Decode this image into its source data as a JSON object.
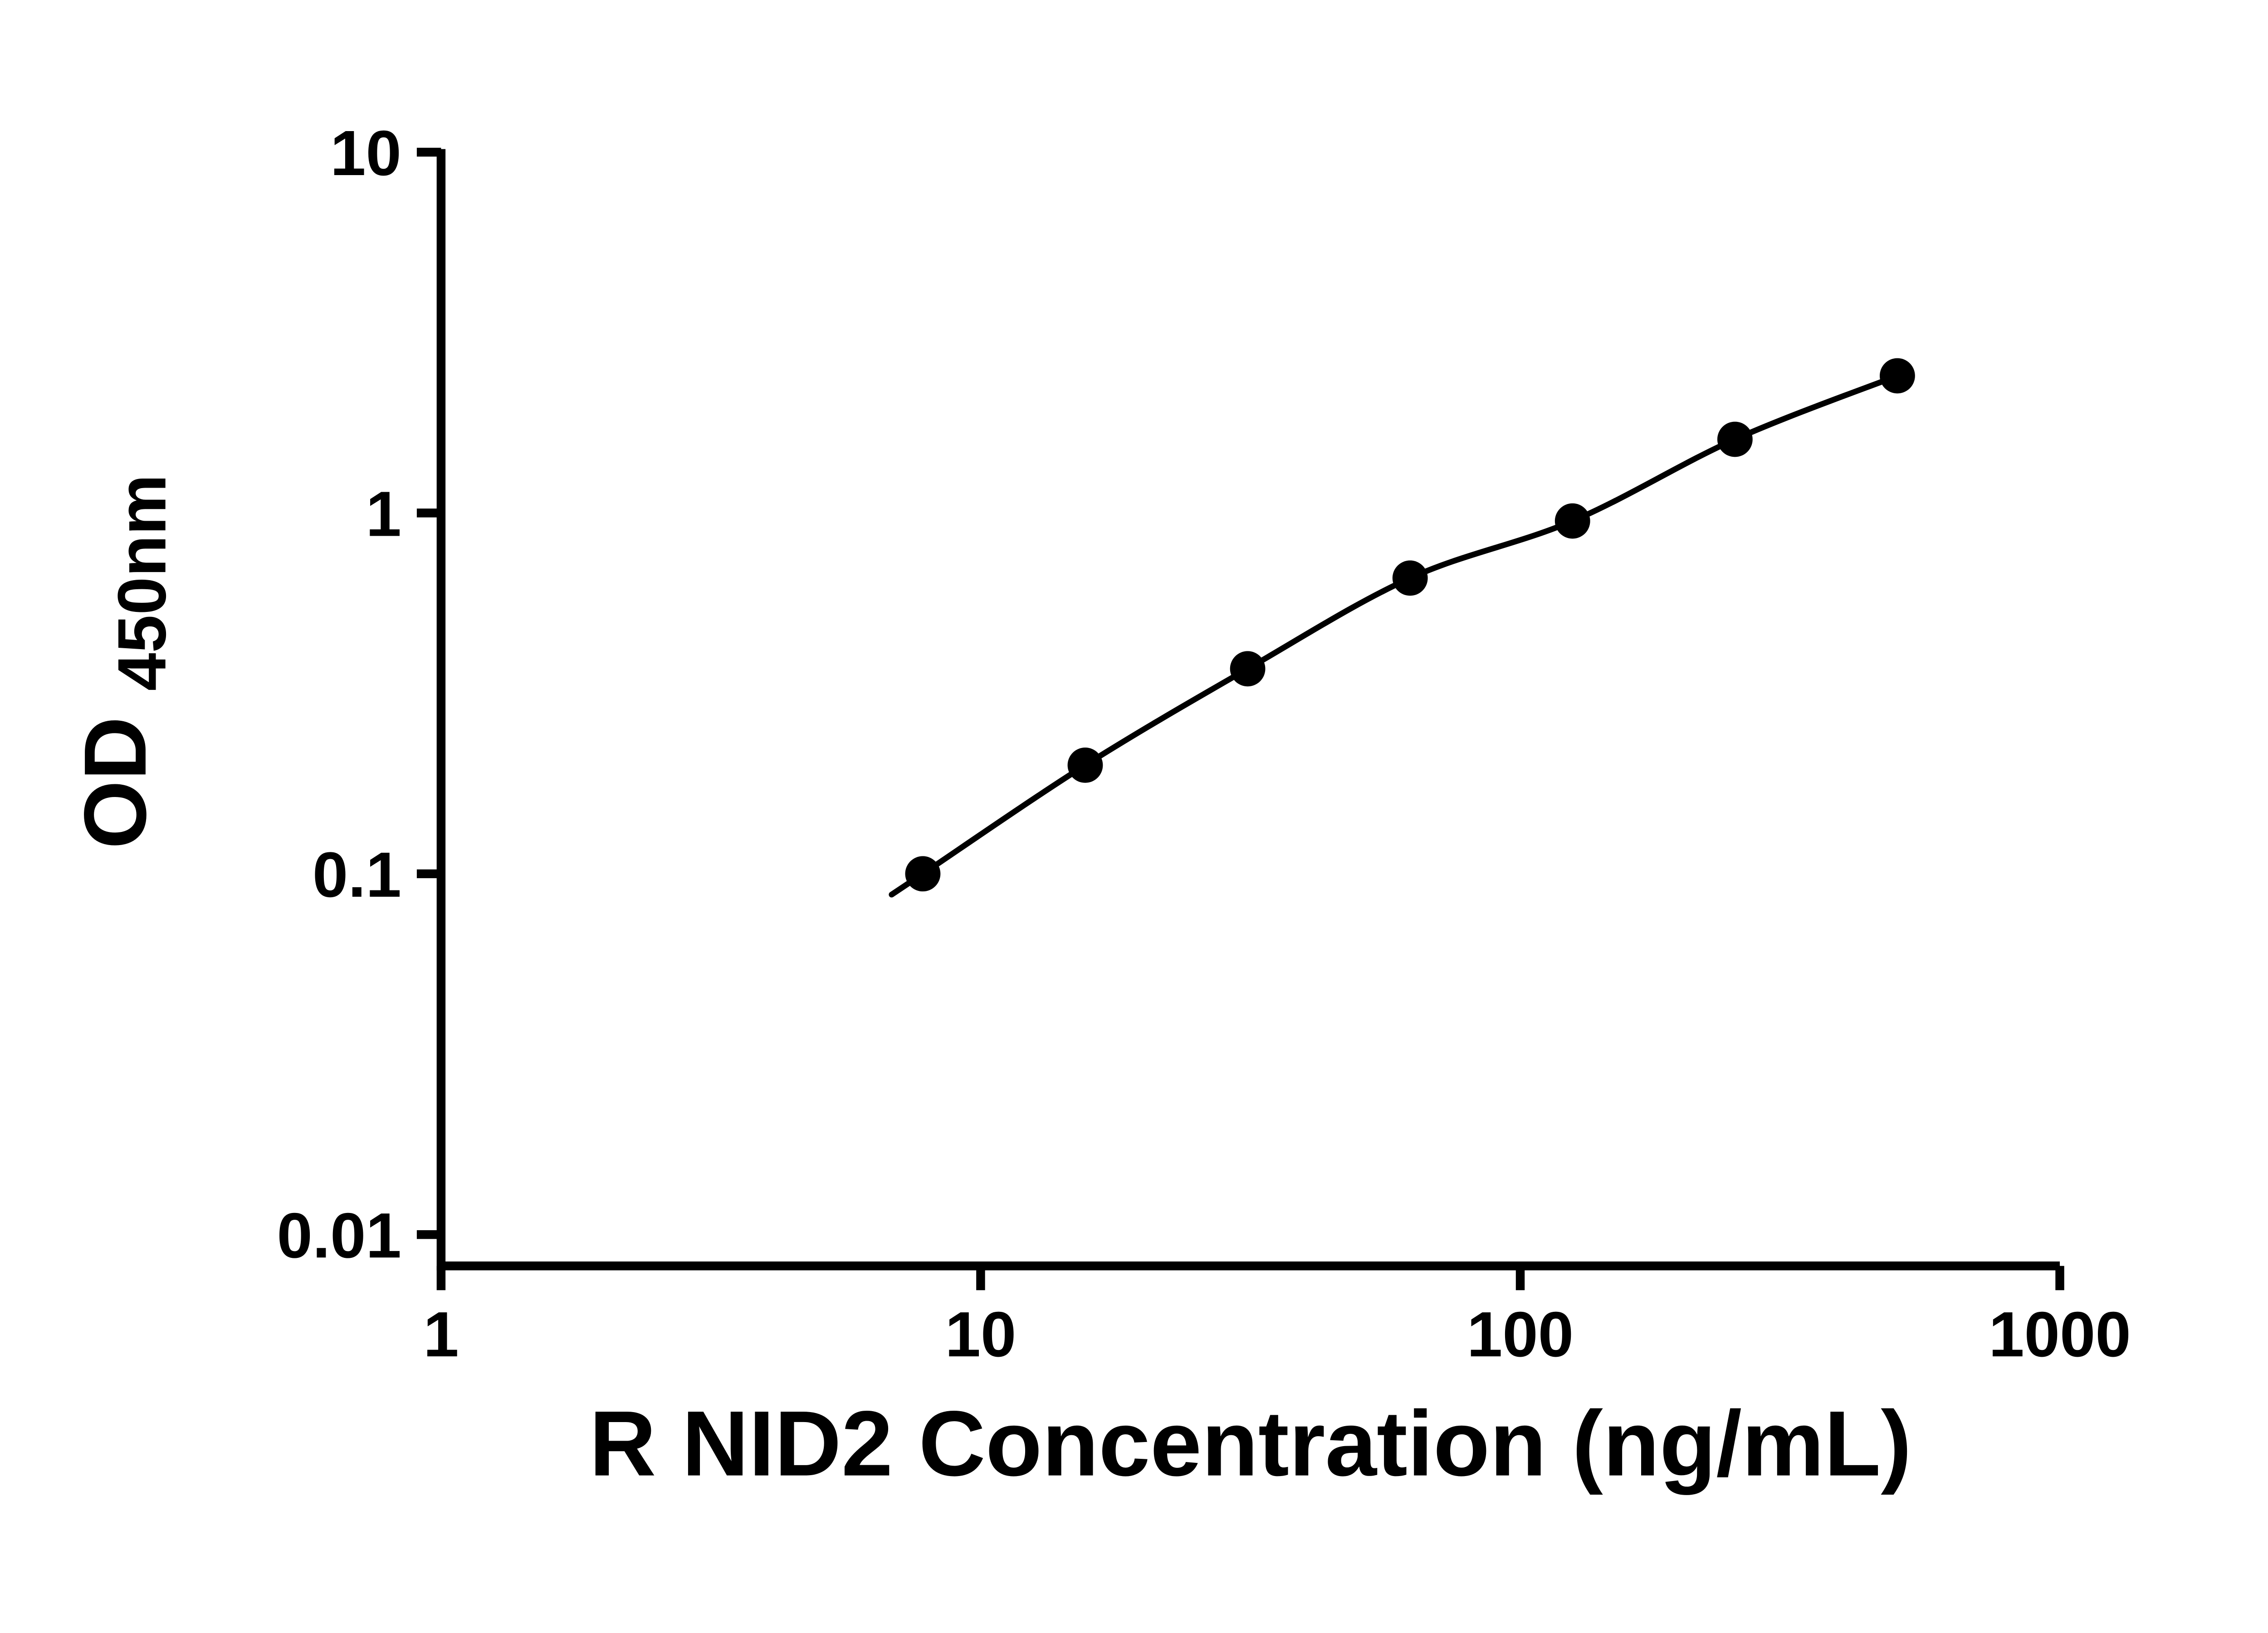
{
  "chart_data": {
    "type": "scatter",
    "title": "",
    "xlabel": "R NID2 Concentration (ng/mL)",
    "ylabel_main": "OD",
    "ylabel_sub": "450nm",
    "x_scale": "log",
    "y_scale": "log",
    "xlim": [
      1,
      1000
    ],
    "ylim": [
      0.01,
      10
    ],
    "grid": false,
    "legend": null,
    "x_ticks": [
      {
        "value": 1,
        "label": "1"
      },
      {
        "value": 10,
        "label": "10"
      },
      {
        "value": 100,
        "label": "100"
      },
      {
        "value": 1000,
        "label": "1000"
      }
    ],
    "y_ticks": [
      {
        "value": 10,
        "label": "10"
      },
      {
        "value": 1,
        "label": "1"
      },
      {
        "value": 0.1,
        "label": "0.1"
      },
      {
        "value": 0.01,
        "label": "0.01"
      }
    ],
    "points": [
      {
        "x": 7.8125,
        "y": 0.1
      },
      {
        "x": 15.625,
        "y": 0.2
      },
      {
        "x": 31.25,
        "y": 0.37
      },
      {
        "x": 62.5,
        "y": 0.66
      },
      {
        "x": 125,
        "y": 0.95
      },
      {
        "x": 250,
        "y": 1.6
      },
      {
        "x": 500,
        "y": 2.4
      }
    ],
    "axis_color": "#000000",
    "line_color": "#000000",
    "marker_color": "#000000",
    "background_color": "#ffffff"
  }
}
